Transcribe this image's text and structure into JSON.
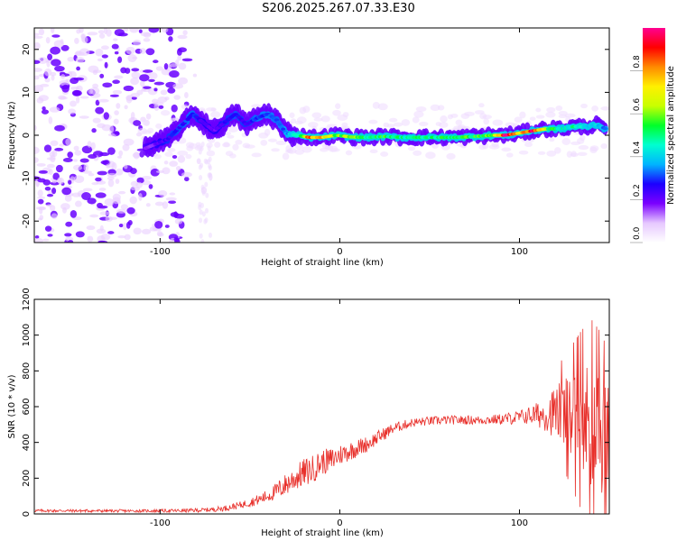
{
  "title": "S206.2025.267.07.33.E30",
  "colors": {
    "line": "#e8302b",
    "speck": "#7a00ff",
    "speck_light": "#d8b5ff",
    "axis": "#000000"
  },
  "chart_data": [
    {
      "type": "heatmap",
      "name": "spectrogram",
      "title": "",
      "xlabel": "Height of straight line (km)",
      "ylabel": "Frequency (Hz)",
      "xlim": [
        -170,
        150
      ],
      "ylim": [
        -25,
        25
      ],
      "xticks": [
        -100,
        0,
        100
      ],
      "yticks": [
        -20,
        -10,
        0,
        10,
        20
      ],
      "colorbar": {
        "label": "Normalized spectral amplitude",
        "range": [
          0.0,
          1.0
        ],
        "ticks": [
          0.0,
          0.2,
          0.4,
          0.6,
          0.8
        ],
        "tick_labels": [
          "0.0",
          "0.2",
          "0.4",
          "0.6",
          "0.8"
        ],
        "colormap": [
          "#ffffff",
          "#e6c8ff",
          "#7b00ff",
          "#1c00ff",
          "#00b4ff",
          "#00ffd0",
          "#00ff2a",
          "#c8ff00",
          "#fff000",
          "#ff8a00",
          "#ff0000",
          "#ff0090"
        ]
      },
      "noise_region_x": [
        -170,
        -85
      ],
      "gap_x": [
        -85,
        -30
      ],
      "ridge": [
        {
          "x": -108,
          "f": -3.0,
          "a": 0.15
        },
        {
          "x": -102,
          "f": -2.0,
          "a": 0.2
        },
        {
          "x": -96,
          "f": -1.0,
          "a": 0.25
        },
        {
          "x": -90,
          "f": 1.5,
          "a": 0.28
        },
        {
          "x": -86,
          "f": 3.0,
          "a": 0.3
        },
        {
          "x": -82,
          "f": 5.0,
          "a": 0.3
        },
        {
          "x": -76,
          "f": 3.0,
          "a": 0.22
        },
        {
          "x": -70,
          "f": 1.0,
          "a": 0.2
        },
        {
          "x": -64,
          "f": 3.0,
          "a": 0.25
        },
        {
          "x": -58,
          "f": 5.0,
          "a": 0.28
        },
        {
          "x": -52,
          "f": 2.5,
          "a": 0.25
        },
        {
          "x": -46,
          "f": 4.0,
          "a": 0.3
        },
        {
          "x": -40,
          "f": 5.0,
          "a": 0.32
        },
        {
          "x": -35,
          "f": 3.5,
          "a": 0.3
        },
        {
          "x": -30,
          "f": 0.5,
          "a": 0.35
        },
        {
          "x": -24,
          "f": 0.0,
          "a": 0.45
        },
        {
          "x": -17,
          "f": -0.5,
          "a": 0.85
        },
        {
          "x": -10,
          "f": -0.5,
          "a": 0.78
        },
        {
          "x": -2,
          "f": 0.0,
          "a": 0.6
        },
        {
          "x": 6,
          "f": -0.4,
          "a": 0.6
        },
        {
          "x": 15,
          "f": -0.5,
          "a": 0.52
        },
        {
          "x": 25,
          "f": -0.3,
          "a": 0.55
        },
        {
          "x": 35,
          "f": -0.5,
          "a": 0.5
        },
        {
          "x": 45,
          "f": -0.5,
          "a": 0.5
        },
        {
          "x": 55,
          "f": -0.5,
          "a": 0.52
        },
        {
          "x": 65,
          "f": -0.5,
          "a": 0.55
        },
        {
          "x": 75,
          "f": -0.3,
          "a": 0.55
        },
        {
          "x": 85,
          "f": 0.0,
          "a": 0.58
        },
        {
          "x": 92,
          "f": 0.0,
          "a": 0.98
        },
        {
          "x": 100,
          "f": 0.5,
          "a": 0.72
        },
        {
          "x": 107,
          "f": 1.0,
          "a": 0.95
        },
        {
          "x": 115,
          "f": 1.5,
          "a": 0.6
        },
        {
          "x": 123,
          "f": 1.5,
          "a": 0.45
        },
        {
          "x": 130,
          "f": 2.0,
          "a": 0.5
        },
        {
          "x": 137,
          "f": 2.0,
          "a": 0.45
        },
        {
          "x": 143,
          "f": 2.5,
          "a": 0.4
        },
        {
          "x": 148,
          "f": 1.5,
          "a": 0.35
        }
      ]
    },
    {
      "type": "line",
      "name": "snr",
      "title": "",
      "xlabel": "Height of straight line (km)",
      "ylabel": "SNR (10 * v/v)",
      "xlim": [
        -170,
        150
      ],
      "ylim": [
        0,
        1200
      ],
      "xticks": [
        -100,
        0,
        100
      ],
      "yticks": [
        0,
        200,
        400,
        600,
        800,
        1000,
        1200
      ],
      "series": [
        {
          "name": "SNR",
          "x": [
            -170,
            -150,
            -130,
            -110,
            -90,
            -75,
            -65,
            -55,
            -45,
            -38,
            -32,
            -25,
            -20,
            -15,
            -10,
            -5,
            0,
            5,
            10,
            15,
            20,
            25,
            30,
            40,
            50,
            60,
            70,
            80,
            90,
            100,
            105,
            110,
            115,
            120,
            125,
            130,
            135,
            140,
            145,
            150
          ],
          "mean": [
            18,
            18,
            17,
            17,
            18,
            22,
            30,
            50,
            80,
            110,
            150,
            200,
            230,
            250,
            290,
            300,
            330,
            350,
            370,
            390,
            420,
            450,
            480,
            510,
            520,
            525,
            525,
            525,
            530,
            540,
            550,
            555,
            560,
            570,
            560,
            540,
            520,
            480,
            460,
            420
          ],
          "noise": [
            8,
            8,
            8,
            8,
            10,
            12,
            15,
            20,
            30,
            40,
            60,
            70,
            80,
            80,
            70,
            70,
            60,
            55,
            50,
            45,
            40,
            35,
            30,
            25,
            25,
            25,
            25,
            25,
            30,
            40,
            50,
            70,
            100,
            150,
            200,
            260,
            320,
            380,
            350,
            300
          ]
        }
      ]
    }
  ]
}
